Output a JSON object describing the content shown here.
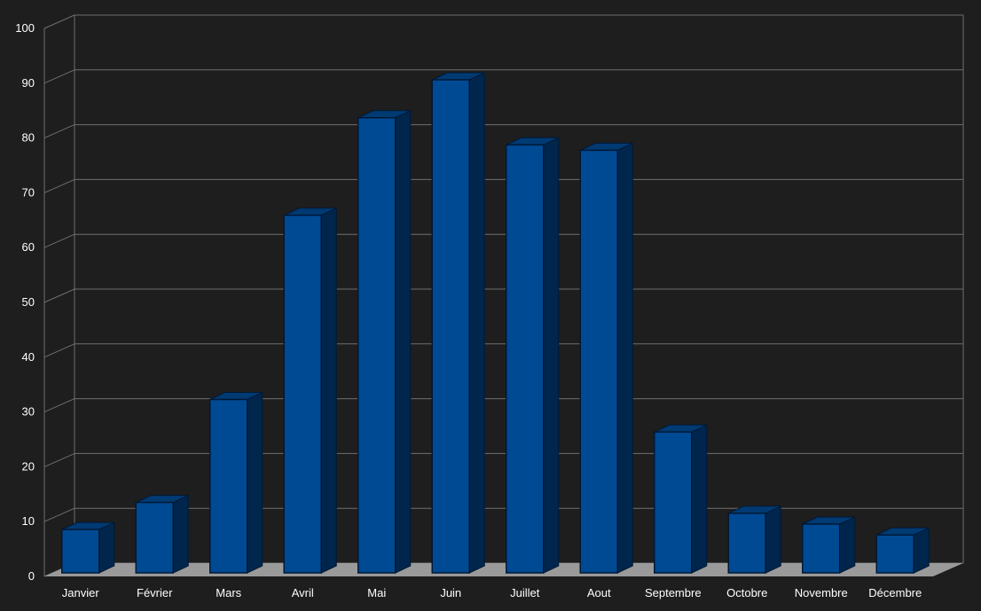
{
  "chart_data": {
    "type": "bar",
    "title": "",
    "xlabel": "",
    "ylabel": "",
    "categories": [
      "Janvier",
      "Février",
      "Mars",
      "Avril",
      "Mai",
      "Juin",
      "Juillet",
      "Aout",
      "Septembre",
      "Octobre",
      "Novembre",
      "Décembre"
    ],
    "values": [
      8,
      13,
      32,
      66,
      84,
      91,
      79,
      78,
      26,
      11,
      9,
      7
    ],
    "ylim": [
      0,
      100
    ],
    "yticks": [
      0,
      10,
      20,
      30,
      40,
      50,
      60,
      70,
      80,
      90,
      100
    ],
    "grid": true,
    "legend": "none",
    "style": "3d",
    "colors": {
      "background": "#1e1e1e",
      "bar_front": "#004a94",
      "bar_side": "#00264d",
      "bar_top": "#003a73",
      "bar_outline": "#001833",
      "grid": "#6e6e6e",
      "floor": "#9a9a9a",
      "text": "#ffffff"
    }
  }
}
